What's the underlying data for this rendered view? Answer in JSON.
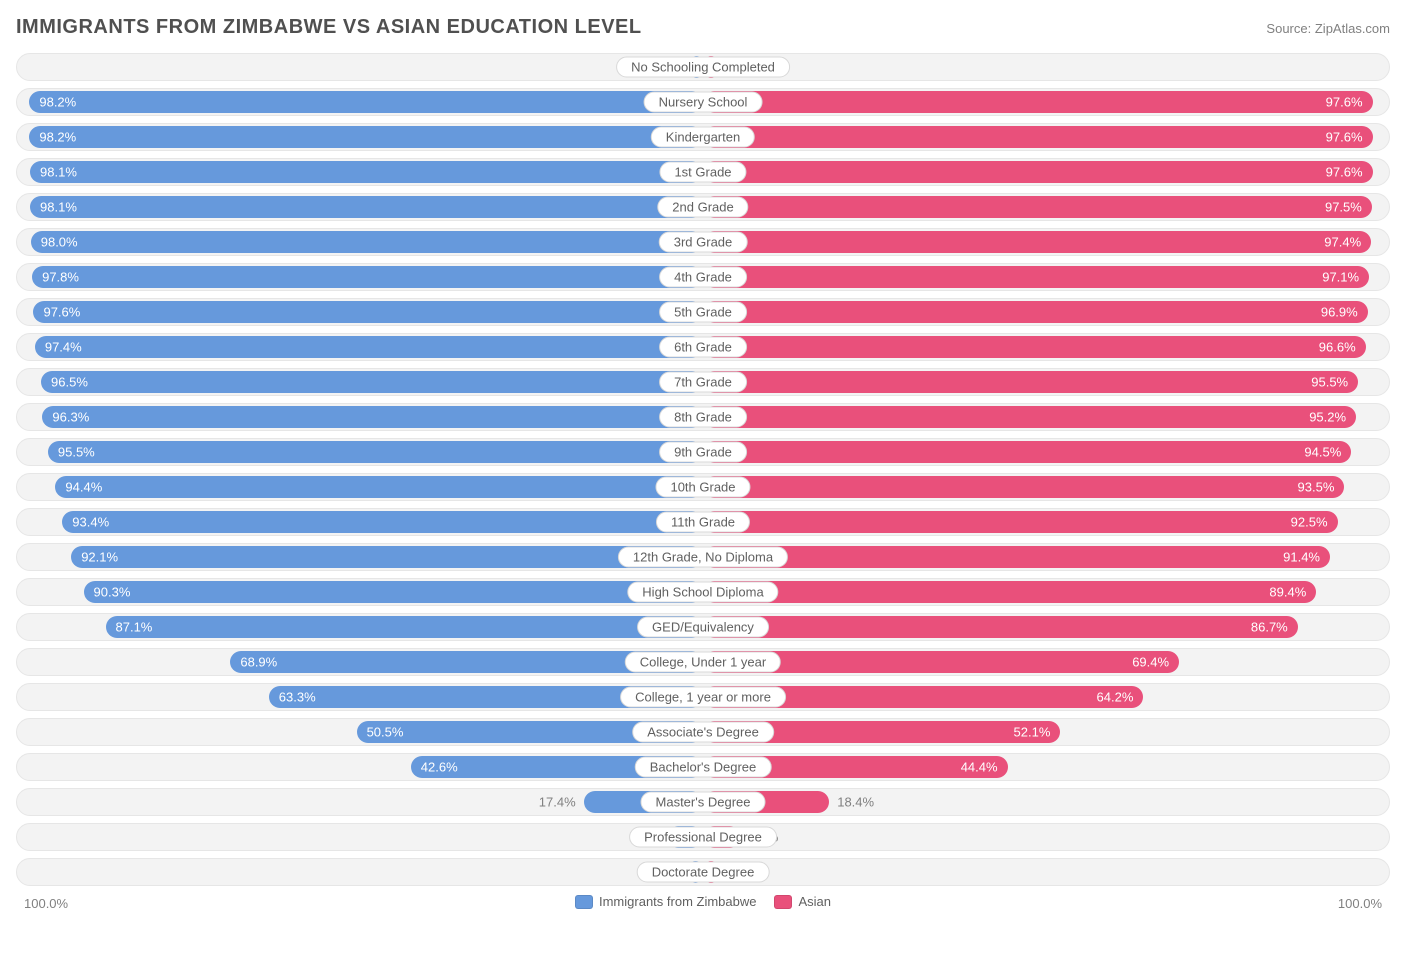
{
  "chart": {
    "type": "diverging-bar",
    "title": "IMMIGRANTS FROM ZIMBABWE VS ASIAN EDUCATION LEVEL",
    "source_label": "Source:",
    "source_name": "ZipAtlas.com",
    "left_axis_label": "100.0%",
    "right_axis_label": "100.0%",
    "xmax": 100.0,
    "background_color": "#ffffff",
    "row_bg_color": "#f3f3f3",
    "row_border_color": "#e6e6e6",
    "label_pill_bg": "#ffffff",
    "label_pill_border": "#d8d8d8",
    "title_color": "#505050",
    "text_muted_color": "#808080",
    "value_inside_color": "#ffffff",
    "title_fontsize": 20,
    "label_fontsize": 13,
    "value_fontsize": 13,
    "inside_threshold": 20.0,
    "series": [
      {
        "name": "Immigrants from Zimbabwe",
        "color": "#6699dc",
        "side": "left"
      },
      {
        "name": "Asian",
        "color": "#e9507b",
        "side": "right"
      }
    ],
    "categories": [
      "No Schooling Completed",
      "Nursery School",
      "Kindergarten",
      "1st Grade",
      "2nd Grade",
      "3rd Grade",
      "4th Grade",
      "5th Grade",
      "6th Grade",
      "7th Grade",
      "8th Grade",
      "9th Grade",
      "10th Grade",
      "11th Grade",
      "12th Grade, No Diploma",
      "High School Diploma",
      "GED/Equivalency",
      "College, Under 1 year",
      "College, 1 year or more",
      "Associate's Degree",
      "Bachelor's Degree",
      "Master's Degree",
      "Professional Degree",
      "Doctorate Degree"
    ],
    "left_values": [
      1.9,
      98.2,
      98.2,
      98.1,
      98.1,
      98.0,
      97.8,
      97.6,
      97.4,
      96.5,
      96.3,
      95.5,
      94.4,
      93.4,
      92.1,
      90.3,
      87.1,
      68.9,
      63.3,
      50.5,
      42.6,
      17.4,
      5.3,
      2.2
    ],
    "right_values": [
      2.4,
      97.6,
      97.6,
      97.6,
      97.5,
      97.4,
      97.1,
      96.9,
      96.6,
      95.5,
      95.2,
      94.5,
      93.5,
      92.5,
      91.4,
      89.4,
      86.7,
      69.4,
      64.2,
      52.1,
      44.4,
      18.4,
      5.5,
      2.4
    ]
  }
}
